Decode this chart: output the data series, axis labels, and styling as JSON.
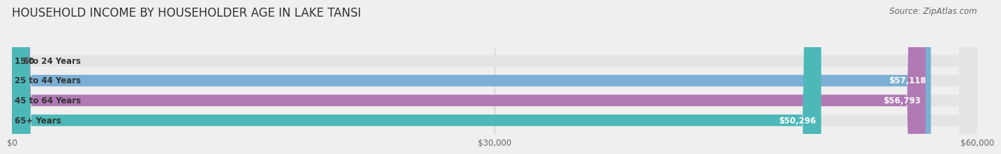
{
  "title": "HOUSEHOLD INCOME BY HOUSEHOLDER AGE IN LAKE TANSI",
  "source": "Source: ZipAtlas.com",
  "categories": [
    "15 to 24 Years",
    "25 to 44 Years",
    "45 to 64 Years",
    "65+ Years"
  ],
  "values": [
    0,
    57118,
    56793,
    50296
  ],
  "labels": [
    "$0",
    "$57,118",
    "$56,793",
    "$50,296"
  ],
  "bar_colors": [
    "#f08080",
    "#7bafd4",
    "#b07ab5",
    "#4db8b8"
  ],
  "background_color": "#efefef",
  "xlim": [
    0,
    60000
  ],
  "xticks": [
    0,
    30000,
    60000
  ],
  "xticklabels": [
    "$0",
    "$30,000",
    "$60,000"
  ],
  "title_fontsize": 12,
  "source_fontsize": 8.5,
  "label_fontsize": 8.5,
  "tick_fontsize": 8.5,
  "category_fontsize": 8.5,
  "bar_height": 0.58,
  "fig_width": 14.06,
  "fig_height": 2.33
}
